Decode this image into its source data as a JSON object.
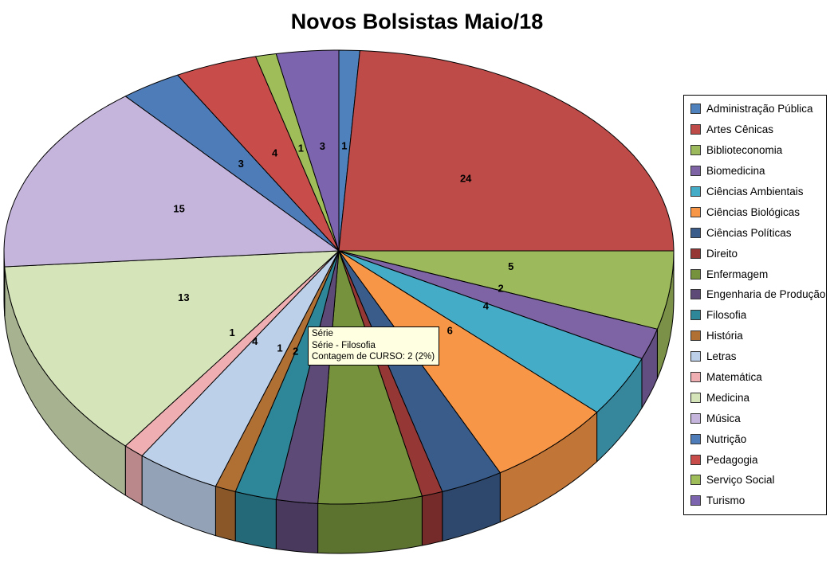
{
  "chart_data": {
    "type": "pie",
    "title": "Novos Bolsistas Maio/18",
    "legend_position": "right",
    "start_angle_deg": 0,
    "direction": "clockwise",
    "total": 100,
    "value_label_note": "data labels show counts; three small slices have no visible label",
    "slices": [
      {
        "label": "Administração Pública",
        "value": 1,
        "color": "#4F81BD",
        "data_label": "1"
      },
      {
        "label": "Artes Cênicas",
        "value": 24,
        "color": "#BE4B48",
        "data_label": "24"
      },
      {
        "label": "Biblioteconomia",
        "value": 5,
        "color": "#9CBA5B",
        "data_label": "5"
      },
      {
        "label": "Biomedicina",
        "value": 2,
        "color": "#7E64A5",
        "data_label": "2"
      },
      {
        "label": "Ciências Ambientais",
        "value": 4,
        "color": "#45ACC8",
        "data_label": "4"
      },
      {
        "label": "Ciências Biológicas",
        "value": 6,
        "color": "#F79646",
        "data_label": "6"
      },
      {
        "label": "Ciências Políticas",
        "value": 3,
        "color": "#3A5C8B",
        "data_label": ""
      },
      {
        "label": "Direito",
        "value": 1,
        "color": "#953735",
        "data_label": ""
      },
      {
        "label": "Enfermagem",
        "value": 5,
        "color": "#76923C",
        "data_label": ""
      },
      {
        "label": "Engenharia de Produção",
        "value": 2,
        "color": "#5D4A77",
        "data_label": "2"
      },
      {
        "label": "Filosofia",
        "value": 2,
        "color": "#2E8699",
        "data_label": "2"
      },
      {
        "label": "História",
        "value": 1,
        "color": "#B06F33",
        "data_label": "1"
      },
      {
        "label": "Letras",
        "value": 4,
        "color": "#BDD0EA",
        "data_label": "4"
      },
      {
        "label": "Matemática",
        "value": 1,
        "color": "#EFAEB1",
        "data_label": "1"
      },
      {
        "label": "Medicina",
        "value": 13,
        "color": "#D6E4BA",
        "data_label": "13"
      },
      {
        "label": "Música",
        "value": 15,
        "color": "#C5B5DC",
        "data_label": "15"
      },
      {
        "label": "Nutrição",
        "value": 3,
        "color": "#4E7CB8",
        "data_label": "3"
      },
      {
        "label": "Pedagogia",
        "value": 4,
        "color": "#C74C4A",
        "data_label": "4"
      },
      {
        "label": "Serviço Social",
        "value": 1,
        "color": "#9FBE5A",
        "data_label": "1"
      },
      {
        "label": "Turismo",
        "value": 3,
        "color": "#7C64AE",
        "data_label": "3"
      }
    ]
  },
  "tooltip": {
    "lines": [
      "Série",
      "Série - Filosofia",
      "Contagem de CURSO: 2 (2%)"
    ],
    "bg_color": "#FFFFE1",
    "hovered_slice": "Filosofia"
  }
}
